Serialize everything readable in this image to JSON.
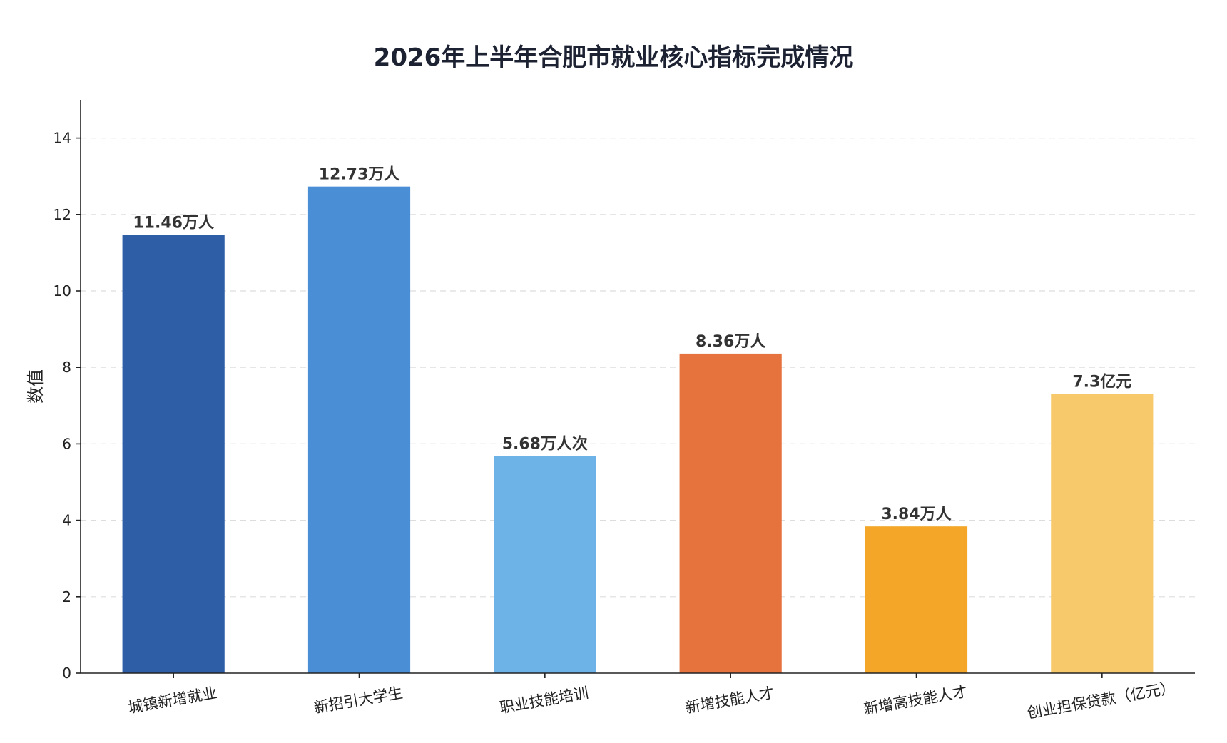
{
  "chart_data": {
    "type": "bar",
    "title": "2026年上半年合肥市就业核心指标完成情况",
    "ylabel": "数值",
    "xlabel": "",
    "ylim": [
      0,
      15
    ],
    "yticks": [
      0,
      2,
      4,
      6,
      8,
      10,
      12,
      14
    ],
    "grid": true,
    "categories": [
      "城镇新增就业",
      "新招引大学生",
      "职业技能培训",
      "新增技能人才",
      "新增高技能人才",
      "创业担保贷款（亿元）"
    ],
    "values": [
      11.46,
      12.73,
      5.68,
      8.36,
      3.84,
      7.3
    ],
    "data_labels": [
      "11.46万人",
      "12.73万人",
      "5.68万人次",
      "8.36万人",
      "3.84万人",
      "7.3亿元"
    ],
    "colors": [
      "#2E5EA6",
      "#4A8ED6",
      "#6DB3E7",
      "#E6733D",
      "#F4A628",
      "#F7C96A"
    ]
  }
}
